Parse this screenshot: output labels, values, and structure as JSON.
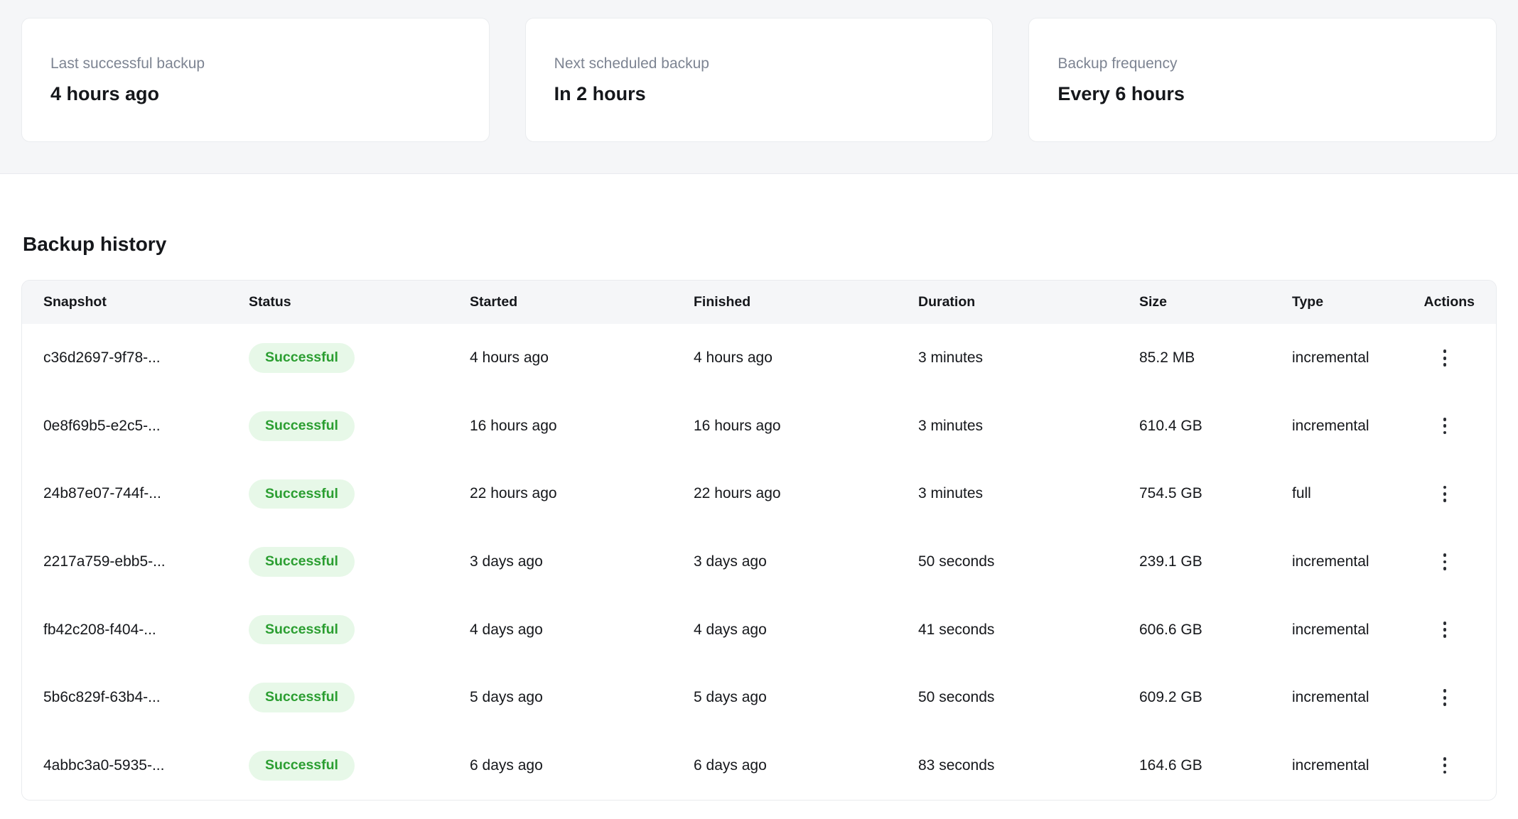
{
  "colors": {
    "top_band_bg": "#f5f6f8",
    "band_border": "#e8eaee",
    "card_border": "#eaecef",
    "muted_label": "#7d8492",
    "text_dark": "#15171b",
    "table_header_bg": "#f5f6f8",
    "badge_bg": "#e7f8e8",
    "badge_text": "#2b9e31"
  },
  "summary_cards": [
    {
      "label": "Last successful backup",
      "value": "4 hours ago"
    },
    {
      "label": "Next scheduled backup",
      "value": "In 2 hours"
    },
    {
      "label": "Backup frequency",
      "value": "Every 6 hours"
    }
  ],
  "history": {
    "title": "Backup history",
    "columns": {
      "snapshot": "Snapshot",
      "status": "Status",
      "started": "Started",
      "finished": "Finished",
      "duration": "Duration",
      "size": "Size",
      "type": "Type",
      "actions": "Actions"
    },
    "rows": [
      {
        "snapshot": "c36d2697-9f78-...",
        "status": "Successful",
        "started": "4 hours ago",
        "finished": "4 hours ago",
        "duration": "3 minutes",
        "size": "85.2 MB",
        "type": "incremental"
      },
      {
        "snapshot": "0e8f69b5-e2c5-...",
        "status": "Successful",
        "started": "16 hours ago",
        "finished": "16 hours ago",
        "duration": "3 minutes",
        "size": "610.4 GB",
        "type": "incremental"
      },
      {
        "snapshot": "24b87e07-744f-...",
        "status": "Successful",
        "started": "22 hours ago",
        "finished": "22 hours ago",
        "duration": "3 minutes",
        "size": "754.5 GB",
        "type": "full"
      },
      {
        "snapshot": "2217a759-ebb5-...",
        "status": "Successful",
        "started": "3 days ago",
        "finished": "3 days ago",
        "duration": "50 seconds",
        "size": "239.1 GB",
        "type": "incremental"
      },
      {
        "snapshot": "fb42c208-f404-...",
        "status": "Successful",
        "started": "4 days ago",
        "finished": "4 days ago",
        "duration": "41 seconds",
        "size": "606.6 GB",
        "type": "incremental"
      },
      {
        "snapshot": "5b6c829f-63b4-...",
        "status": "Successful",
        "started": "5 days ago",
        "finished": "5 days ago",
        "duration": "50 seconds",
        "size": "609.2 GB",
        "type": "incremental"
      },
      {
        "snapshot": "4abbc3a0-5935-...",
        "status": "Successful",
        "started": "6 days ago",
        "finished": "6 days ago",
        "duration": "83 seconds",
        "size": "164.6 GB",
        "type": "incremental"
      }
    ]
  }
}
